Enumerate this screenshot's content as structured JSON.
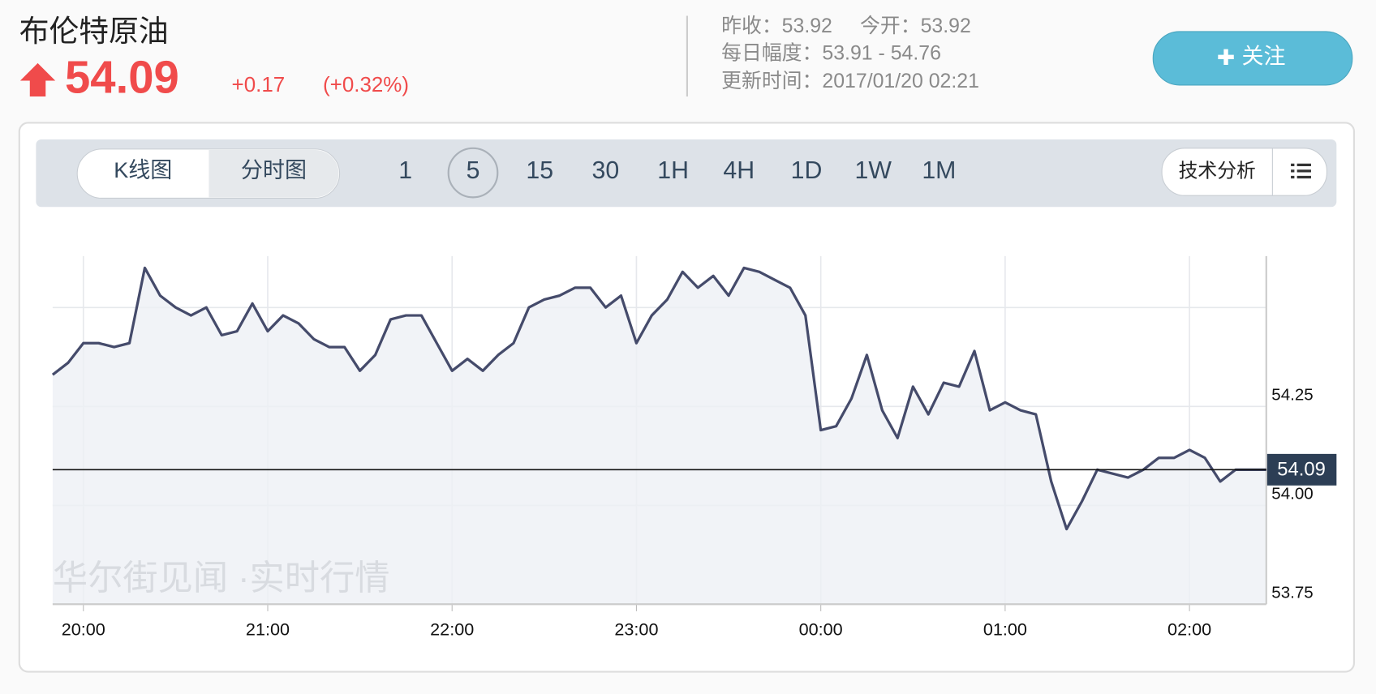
{
  "header": {
    "title": "布伦特原油",
    "price": "54.09",
    "change": "+0.17",
    "change_pct": "(+0.32%)",
    "info": {
      "prev_close": "昨收：53.92",
      "open": "今开：53.92",
      "range": "每日幅度：53.91 - 54.76",
      "updated": "更新时间：2017/01/20 02:21"
    },
    "follow_button": "关注"
  },
  "toolbar": {
    "chart_types": [
      "K线图",
      "分时图"
    ],
    "intervals": [
      "1",
      "5",
      "15",
      "30",
      "1H",
      "4H",
      "1D",
      "1W",
      "1M"
    ],
    "analysis_button": "技术分析"
  },
  "chart_data": {
    "type": "line",
    "watermark": "华尔街见闻 ·实时行情",
    "color": "#454b6b",
    "x": [
      -10,
      -5,
      0,
      5,
      10,
      15,
      20,
      25,
      30,
      35,
      40,
      45,
      50,
      55,
      60,
      65,
      70,
      75,
      80,
      85,
      90,
      95,
      100,
      105,
      110,
      115,
      120,
      125,
      130,
      135,
      140,
      145,
      150,
      155,
      160,
      165,
      170,
      175,
      180,
      185,
      190,
      195,
      200,
      205,
      210,
      215,
      220,
      225,
      230,
      235,
      240,
      245,
      250,
      255,
      260,
      265,
      270,
      275,
      280,
      285,
      290,
      295,
      300,
      305,
      310,
      315,
      320,
      325,
      330,
      335,
      340,
      345,
      350,
      355,
      360,
      365,
      370,
      375,
      380,
      385
    ],
    "values": [
      54.33,
      54.36,
      54.41,
      54.41,
      54.4,
      54.41,
      54.6,
      54.53,
      54.5,
      54.48,
      54.5,
      54.43,
      54.44,
      54.51,
      54.44,
      54.48,
      54.46,
      54.42,
      54.4,
      54.4,
      54.34,
      54.38,
      54.47,
      54.48,
      54.48,
      54.41,
      54.34,
      54.37,
      54.34,
      54.38,
      54.41,
      54.5,
      54.52,
      54.53,
      54.55,
      54.55,
      54.5,
      54.53,
      54.41,
      54.48,
      54.52,
      54.59,
      54.55,
      54.58,
      54.53,
      54.6,
      54.59,
      54.57,
      54.55,
      54.48,
      54.19,
      54.2,
      54.27,
      54.38,
      54.24,
      54.17,
      54.3,
      54.23,
      54.31,
      54.3,
      54.39,
      54.24,
      54.26,
      54.24,
      54.23,
      54.06,
      53.94,
      54.01,
      54.09,
      54.08,
      54.07,
      54.09,
      54.12,
      54.12,
      54.14,
      54.12,
      54.06,
      54.09,
      54.09,
      54.09
    ],
    "xlim": [
      -10,
      385
    ],
    "xticks": [
      {
        "value": 0,
        "label": "20:00"
      },
      {
        "value": 60,
        "label": "21:00"
      },
      {
        "value": 120,
        "label": "22:00"
      },
      {
        "value": 180,
        "label": "23:00"
      },
      {
        "value": 240,
        "label": "00:00"
      },
      {
        "value": 300,
        "label": "01:00"
      },
      {
        "value": 360,
        "label": "02:00"
      }
    ],
    "ylim": [
      53.75,
      54.63
    ],
    "yticks": [
      {
        "value": 53.75,
        "label": "53.75"
      },
      {
        "value": 54,
        "label": "54.00"
      },
      {
        "value": 54.25,
        "label": "54.25"
      }
    ],
    "ygrid": [
      53.75,
      54,
      54.25,
      54.5
    ],
    "current_value": 54.09
  }
}
